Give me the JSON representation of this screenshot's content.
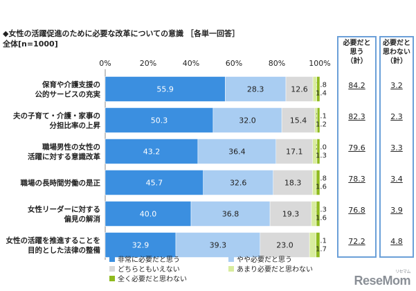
{
  "header": {
    "title": "◆女性の活躍促進のために必要な改革についての意識 ［各単一回答］",
    "subtitle": "全体[n=1000]"
  },
  "summary": {
    "col1_header": [
      "必要だと",
      "思う",
      "（計）"
    ],
    "col2_header": [
      "必要だと",
      "思わない",
      "（計）"
    ],
    "col1_values": [
      "84.2",
      "82.3",
      "79.6",
      "78.3",
      "76.8",
      "72.2"
    ],
    "col2_values": [
      "3.2",
      "2.3",
      "3.3",
      "3.4",
      "3.9",
      "4.8"
    ]
  },
  "logo": {
    "text": "ReseMom",
    "kana": "リセマム"
  },
  "colors": {
    "very_necessary": "#3b8fe0",
    "somewhat_necessary": "#a9cdf2",
    "neither": "#d9d9d9",
    "not_very_necessary": "#d8ec9e",
    "not_at_all_necessary": "#8fba1e"
  },
  "chart_data": {
    "type": "bar",
    "orientation": "horizontal",
    "stacked": true,
    "categories": [
      [
        "保育や介護支援の",
        "公的サービスの充実"
      ],
      [
        "夫の子育て・介護・家事の",
        "分担比率の上昇"
      ],
      [
        "職場男性の女性の",
        "活躍に対する意識改革"
      ],
      [
        "職場の長時間労働の是正"
      ],
      [
        "女性リーダーに対する",
        "偏見の解消"
      ],
      [
        "女性の活躍を推進することを",
        "目的とした法律の整備"
      ]
    ],
    "series": [
      {
        "name": "非常に必要だと思う",
        "values": [
          55.9,
          50.3,
          43.2,
          45.7,
          40.0,
          32.9
        ],
        "labels": [
          "55.9",
          "50.3",
          "43.2",
          "45.7",
          "40.0",
          "32.9"
        ]
      },
      {
        "name": "やや必要だと思う",
        "values": [
          28.3,
          32.0,
          36.4,
          32.6,
          36.8,
          39.3
        ],
        "labels": [
          "28.3",
          "32.0",
          "36.4",
          "32.6",
          "36.8",
          "39.3"
        ]
      },
      {
        "name": "どちらともいえない",
        "values": [
          12.6,
          15.4,
          17.1,
          18.3,
          19.3,
          23.0
        ],
        "labels": [
          "12.6",
          "15.4",
          "17.1",
          "18.3",
          "19.3",
          "23.0"
        ]
      },
      {
        "name": "あまり必要だと思わない",
        "values": [
          1.8,
          1.1,
          2.0,
          1.8,
          2.3,
          3.1
        ],
        "labels": [
          "1.8",
          "1.1",
          "2.0",
          "1.8",
          "2.3",
          "3.1"
        ]
      },
      {
        "name": "全く必要だと思わない",
        "values": [
          1.4,
          1.2,
          1.3,
          1.6,
          1.6,
          1.7
        ],
        "labels": [
          "1.4",
          "1.2",
          "1.3",
          "1.6",
          "1.6",
          "1.7"
        ]
      }
    ],
    "x_ticks": [
      "0%",
      "20%",
      "40%",
      "60%",
      "80%",
      "100%"
    ],
    "xlim": [
      0,
      100
    ],
    "legend_position": "bottom",
    "grid": false
  }
}
